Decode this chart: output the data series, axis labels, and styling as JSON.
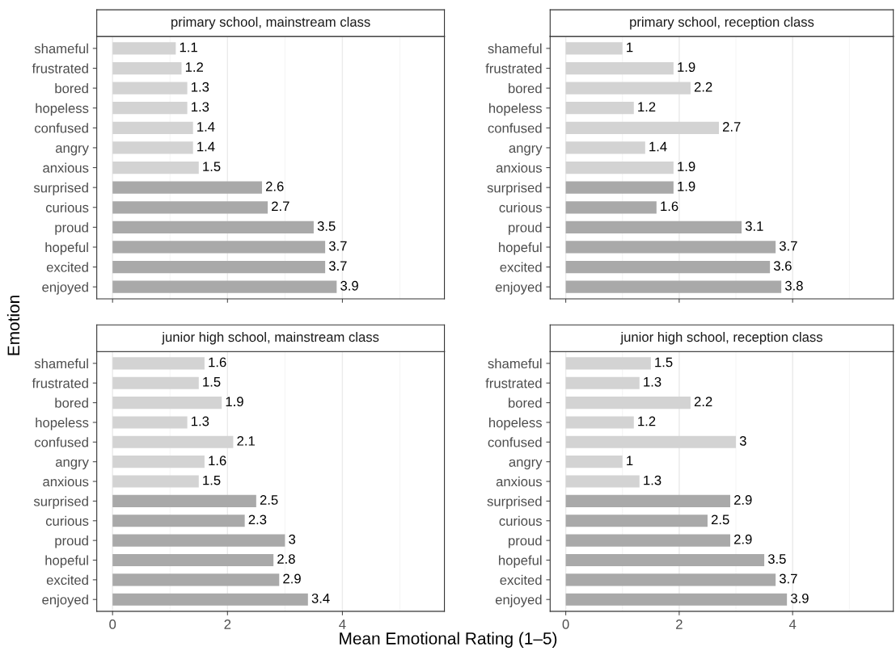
{
  "chart_data": [
    {
      "type": "bar",
      "orientation": "horizontal",
      "title": "primary school, mainstream class",
      "ylabel": "Emotion",
      "categories": [
        "shameful",
        "frustrated",
        "bored",
        "hopeless",
        "confused",
        "angry",
        "anxious",
        "surprised",
        "curious",
        "proud",
        "hopeful",
        "excited",
        "enjoyed"
      ],
      "values": [
        1.1,
        1.2,
        1.3,
        1.3,
        1.4,
        1.4,
        1.5,
        2.6,
        2.7,
        3.5,
        3.7,
        3.7,
        3.9
      ],
      "colors": [
        "#d3d3d3",
        "#d3d3d3",
        "#d3d3d3",
        "#d3d3d3",
        "#d3d3d3",
        "#d3d3d3",
        "#d3d3d3",
        "#a9a9a9",
        "#a9a9a9",
        "#a9a9a9",
        "#a9a9a9",
        "#a9a9a9",
        "#a9a9a9"
      ],
      "data_labels": true,
      "xlim": [
        -0.275,
        5.775
      ],
      "xticks": [
        0,
        2,
        4
      ],
      "grid": "x",
      "tick_labels": "y"
    },
    {
      "type": "bar",
      "orientation": "horizontal",
      "title": "primary school, reception class",
      "categories": [
        "shameful",
        "frustrated",
        "bored",
        "hopeless",
        "confused",
        "angry",
        "anxious",
        "surprised",
        "curious",
        "proud",
        "hopeful",
        "excited",
        "enjoyed"
      ],
      "values": [
        1,
        1.9,
        2.2,
        1.2,
        2.7,
        1.4,
        1.9,
        1.9,
        1.6,
        3.1,
        3.7,
        3.6,
        3.8
      ],
      "colors": [
        "#d3d3d3",
        "#d3d3d3",
        "#d3d3d3",
        "#d3d3d3",
        "#d3d3d3",
        "#d3d3d3",
        "#d3d3d3",
        "#a9a9a9",
        "#a9a9a9",
        "#a9a9a9",
        "#a9a9a9",
        "#a9a9a9",
        "#a9a9a9"
      ],
      "data_labels": true,
      "xlim": [
        -0.275,
        5.775
      ],
      "xticks": [
        0,
        2,
        4
      ],
      "grid": "x",
      "tick_labels": "y"
    },
    {
      "type": "bar",
      "orientation": "horizontal",
      "title": "junior high school, mainstream class",
      "xlabel": "Mean Emotional Rating (1–5)",
      "categories": [
        "shameful",
        "frustrated",
        "bored",
        "hopeless",
        "confused",
        "angry",
        "anxious",
        "surprised",
        "curious",
        "proud",
        "hopeful",
        "excited",
        "enjoyed"
      ],
      "values": [
        1.6,
        1.5,
        1.9,
        1.3,
        2.1,
        1.6,
        1.5,
        2.5,
        2.3,
        3,
        2.8,
        2.9,
        3.4
      ],
      "colors": [
        "#d3d3d3",
        "#d3d3d3",
        "#d3d3d3",
        "#d3d3d3",
        "#d3d3d3",
        "#d3d3d3",
        "#d3d3d3",
        "#a9a9a9",
        "#a9a9a9",
        "#a9a9a9",
        "#a9a9a9",
        "#a9a9a9",
        "#a9a9a9"
      ],
      "data_labels": true,
      "xlim": [
        -0.275,
        5.775
      ],
      "xticks": [
        0,
        2,
        4
      ],
      "grid": "x"
    },
    {
      "type": "bar",
      "orientation": "horizontal",
      "title": "junior high school, reception class",
      "categories": [
        "shameful",
        "frustrated",
        "bored",
        "hopeless",
        "confused",
        "angry",
        "anxious",
        "surprised",
        "curious",
        "proud",
        "hopeful",
        "excited",
        "enjoyed"
      ],
      "values": [
        1.5,
        1.3,
        2.2,
        1.2,
        3,
        1,
        1.3,
        2.9,
        2.5,
        2.9,
        3.5,
        3.7,
        3.9
      ],
      "colors": [
        "#d3d3d3",
        "#d3d3d3",
        "#d3d3d3",
        "#d3d3d3",
        "#d3d3d3",
        "#d3d3d3",
        "#d3d3d3",
        "#a9a9a9",
        "#a9a9a9",
        "#a9a9a9",
        "#a9a9a9",
        "#a9a9a9",
        "#a9a9a9"
      ],
      "data_labels": true,
      "xlim": [
        -0.275,
        5.775
      ],
      "xticks": [
        0,
        2,
        4
      ],
      "grid": "x"
    }
  ]
}
